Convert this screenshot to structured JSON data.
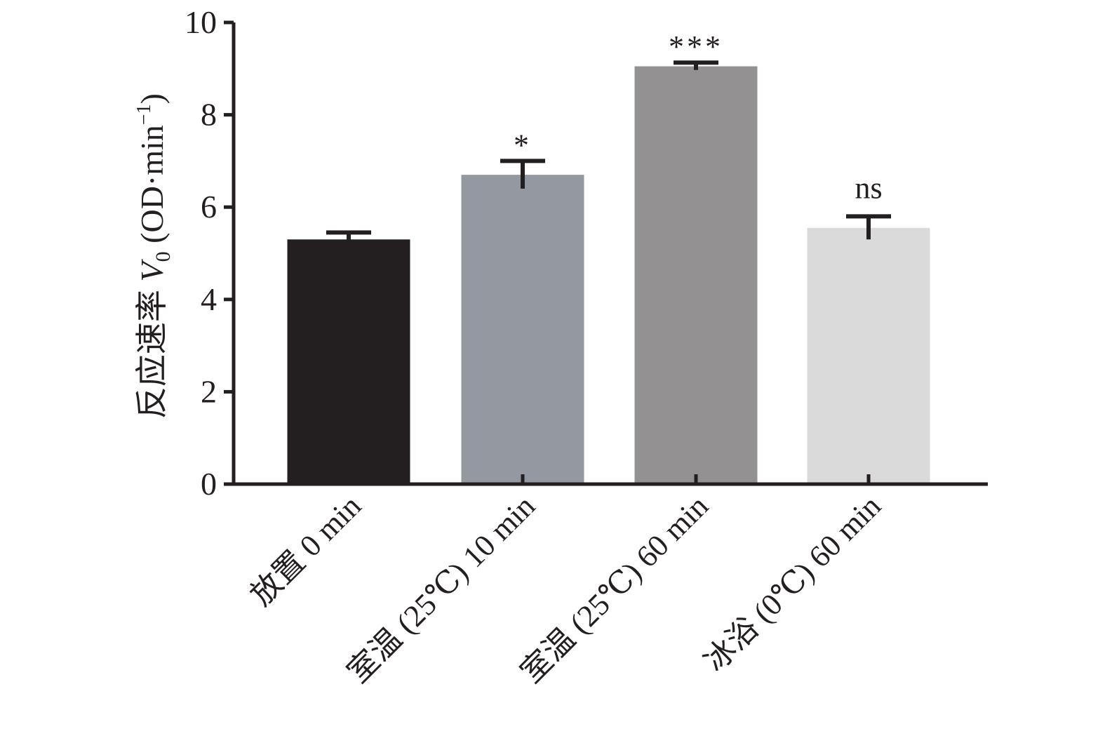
{
  "chart_data": {
    "type": "bar",
    "title": "",
    "xlabel": "",
    "ylabel": "反应速率 V0 (OD·min−1)",
    "ylabel_parts": {
      "prefix": "反应速率 ",
      "variable": "V",
      "subscript": "0",
      "unit_open": " (OD·min",
      "superscript": "−1",
      "unit_close": ")"
    },
    "ylim": [
      0,
      10
    ],
    "yticks": [
      "0",
      "2",
      "4",
      "6",
      "8",
      "10"
    ],
    "categories": [
      "放置 0 min",
      "室温 (25℃) 10 min",
      "室温 (25℃) 60 min",
      "冰浴 (0℃) 60 min"
    ],
    "values": [
      5.3,
      6.7,
      9.05,
      5.55
    ],
    "error": [
      0.15,
      0.3,
      0.08,
      0.25
    ],
    "significance": [
      "",
      "*",
      "***",
      "ns"
    ],
    "bar_colors": [
      "#231f20",
      "#9498a0",
      "#939192",
      "#dadada"
    ],
    "grid": false,
    "legend": "none"
  }
}
